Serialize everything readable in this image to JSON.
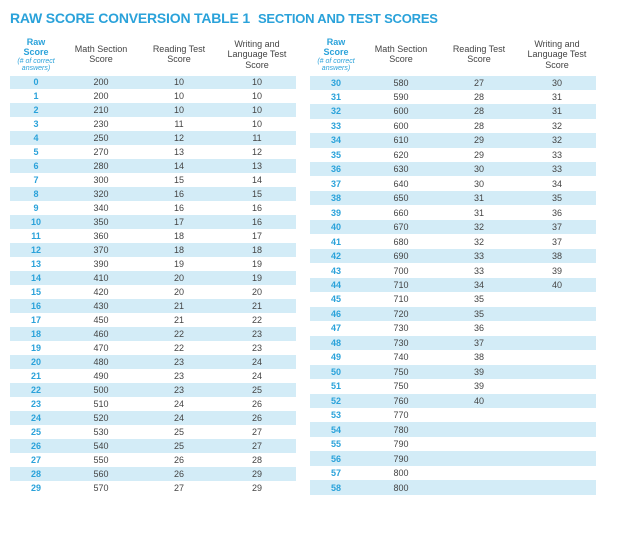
{
  "colors": {
    "accent": "#2aa2da",
    "stripe": "#d3ecf7",
    "title_main": "#2aa2da",
    "title_sub": "#2aa2da",
    "header_text": "#444444",
    "cell_text": "#444444",
    "background": "#ffffff"
  },
  "title": {
    "main": "RAW SCORE CONVERSION TABLE 1",
    "sub": "SECTION AND TEST SCORES"
  },
  "headers": {
    "raw_line1": "Raw",
    "raw_line2": "Score",
    "raw_sub": "(# of correct answers)",
    "math": "Math Section Score",
    "reading": "Reading Test Score",
    "writing": "Writing and Language Test Score"
  },
  "left_rows": [
    {
      "raw": "0",
      "math": "200",
      "reading": "10",
      "writing": "10"
    },
    {
      "raw": "1",
      "math": "200",
      "reading": "10",
      "writing": "10"
    },
    {
      "raw": "2",
      "math": "210",
      "reading": "10",
      "writing": "10"
    },
    {
      "raw": "3",
      "math": "230",
      "reading": "11",
      "writing": "10"
    },
    {
      "raw": "4",
      "math": "250",
      "reading": "12",
      "writing": "11"
    },
    {
      "raw": "5",
      "math": "270",
      "reading": "13",
      "writing": "12"
    },
    {
      "raw": "6",
      "math": "280",
      "reading": "14",
      "writing": "13"
    },
    {
      "raw": "7",
      "math": "300",
      "reading": "15",
      "writing": "14"
    },
    {
      "raw": "8",
      "math": "320",
      "reading": "16",
      "writing": "15"
    },
    {
      "raw": "9",
      "math": "340",
      "reading": "16",
      "writing": "16"
    },
    {
      "raw": "10",
      "math": "350",
      "reading": "17",
      "writing": "16"
    },
    {
      "raw": "11",
      "math": "360",
      "reading": "18",
      "writing": "17"
    },
    {
      "raw": "12",
      "math": "370",
      "reading": "18",
      "writing": "18"
    },
    {
      "raw": "13",
      "math": "390",
      "reading": "19",
      "writing": "19"
    },
    {
      "raw": "14",
      "math": "410",
      "reading": "20",
      "writing": "19"
    },
    {
      "raw": "15",
      "math": "420",
      "reading": "20",
      "writing": "20"
    },
    {
      "raw": "16",
      "math": "430",
      "reading": "21",
      "writing": "21"
    },
    {
      "raw": "17",
      "math": "450",
      "reading": "21",
      "writing": "22"
    },
    {
      "raw": "18",
      "math": "460",
      "reading": "22",
      "writing": "23"
    },
    {
      "raw": "19",
      "math": "470",
      "reading": "22",
      "writing": "23"
    },
    {
      "raw": "20",
      "math": "480",
      "reading": "23",
      "writing": "24"
    },
    {
      "raw": "21",
      "math": "490",
      "reading": "23",
      "writing": "24"
    },
    {
      "raw": "22",
      "math": "500",
      "reading": "23",
      "writing": "25"
    },
    {
      "raw": "23",
      "math": "510",
      "reading": "24",
      "writing": "26"
    },
    {
      "raw": "24",
      "math": "520",
      "reading": "24",
      "writing": "26"
    },
    {
      "raw": "25",
      "math": "530",
      "reading": "25",
      "writing": "27"
    },
    {
      "raw": "26",
      "math": "540",
      "reading": "25",
      "writing": "27"
    },
    {
      "raw": "27",
      "math": "550",
      "reading": "26",
      "writing": "28"
    },
    {
      "raw": "28",
      "math": "560",
      "reading": "26",
      "writing": "29"
    },
    {
      "raw": "29",
      "math": "570",
      "reading": "27",
      "writing": "29"
    }
  ],
  "right_rows": [
    {
      "raw": "30",
      "math": "580",
      "reading": "27",
      "writing": "30"
    },
    {
      "raw": "31",
      "math": "590",
      "reading": "28",
      "writing": "31"
    },
    {
      "raw": "32",
      "math": "600",
      "reading": "28",
      "writing": "31"
    },
    {
      "raw": "33",
      "math": "600",
      "reading": "28",
      "writing": "32"
    },
    {
      "raw": "34",
      "math": "610",
      "reading": "29",
      "writing": "32"
    },
    {
      "raw": "35",
      "math": "620",
      "reading": "29",
      "writing": "33"
    },
    {
      "raw": "36",
      "math": "630",
      "reading": "30",
      "writing": "33"
    },
    {
      "raw": "37",
      "math": "640",
      "reading": "30",
      "writing": "34"
    },
    {
      "raw": "38",
      "math": "650",
      "reading": "31",
      "writing": "35"
    },
    {
      "raw": "39",
      "math": "660",
      "reading": "31",
      "writing": "36"
    },
    {
      "raw": "40",
      "math": "670",
      "reading": "32",
      "writing": "37"
    },
    {
      "raw": "41",
      "math": "680",
      "reading": "32",
      "writing": "37"
    },
    {
      "raw": "42",
      "math": "690",
      "reading": "33",
      "writing": "38"
    },
    {
      "raw": "43",
      "math": "700",
      "reading": "33",
      "writing": "39"
    },
    {
      "raw": "44",
      "math": "710",
      "reading": "34",
      "writing": "40"
    },
    {
      "raw": "45",
      "math": "710",
      "reading": "35",
      "writing": ""
    },
    {
      "raw": "46",
      "math": "720",
      "reading": "35",
      "writing": ""
    },
    {
      "raw": "47",
      "math": "730",
      "reading": "36",
      "writing": ""
    },
    {
      "raw": "48",
      "math": "730",
      "reading": "37",
      "writing": ""
    },
    {
      "raw": "49",
      "math": "740",
      "reading": "38",
      "writing": ""
    },
    {
      "raw": "50",
      "math": "750",
      "reading": "39",
      "writing": ""
    },
    {
      "raw": "51",
      "math": "750",
      "reading": "39",
      "writing": ""
    },
    {
      "raw": "52",
      "math": "760",
      "reading": "40",
      "writing": ""
    },
    {
      "raw": "53",
      "math": "770",
      "reading": "",
      "writing": ""
    },
    {
      "raw": "54",
      "math": "780",
      "reading": "",
      "writing": ""
    },
    {
      "raw": "55",
      "math": "790",
      "reading": "",
      "writing": ""
    },
    {
      "raw": "56",
      "math": "790",
      "reading": "",
      "writing": ""
    },
    {
      "raw": "57",
      "math": "800",
      "reading": "",
      "writing": ""
    },
    {
      "raw": "58",
      "math": "800",
      "reading": "",
      "writing": ""
    }
  ]
}
